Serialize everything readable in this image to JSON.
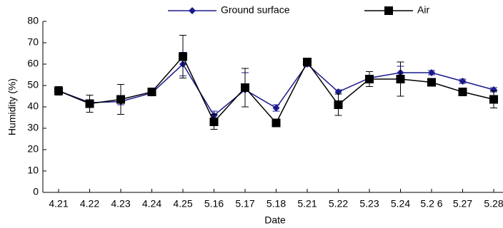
{
  "chart_data": {
    "type": "line",
    "x_label": "Date",
    "y_label": "Humidity (%)",
    "categories": [
      "4.21",
      "4.22",
      "4.23",
      "4.24",
      "4.25",
      "5.16",
      "5.17",
      "5.18",
      "5.21",
      "5.22",
      "5.23",
      "5.24",
      "5.2 6",
      "5.27",
      "5.28"
    ],
    "series": [
      {
        "name": "Ground surface",
        "color": "#1a1a8c",
        "marker": "diamond",
        "values": [
          47.5,
          42,
          42.5,
          46.5,
          60,
          36,
          48,
          39.5,
          60,
          47,
          53.5,
          56,
          56,
          52,
          48
        ],
        "errors": [
          1.5,
          1,
          1.5,
          1,
          5.5,
          2,
          8,
          1.5,
          1,
          1,
          1,
          3,
          1,
          1,
          1
        ]
      },
      {
        "name": "Air",
        "color": "#000000",
        "marker": "square",
        "values": [
          47.5,
          41.5,
          43.5,
          47,
          63.5,
          33,
          49,
          32.5,
          61,
          41,
          53,
          53,
          51.5,
          47,
          43.5
        ],
        "errors": [
          2,
          4,
          7,
          1,
          10,
          3.5,
          9,
          1,
          1.5,
          5,
          3.5,
          8,
          1,
          1,
          4
        ]
      }
    ],
    "ylim": [
      0,
      80
    ],
    "yticks": [
      0,
      10,
      20,
      30,
      40,
      50,
      60,
      70,
      80
    ],
    "legend": "top"
  }
}
